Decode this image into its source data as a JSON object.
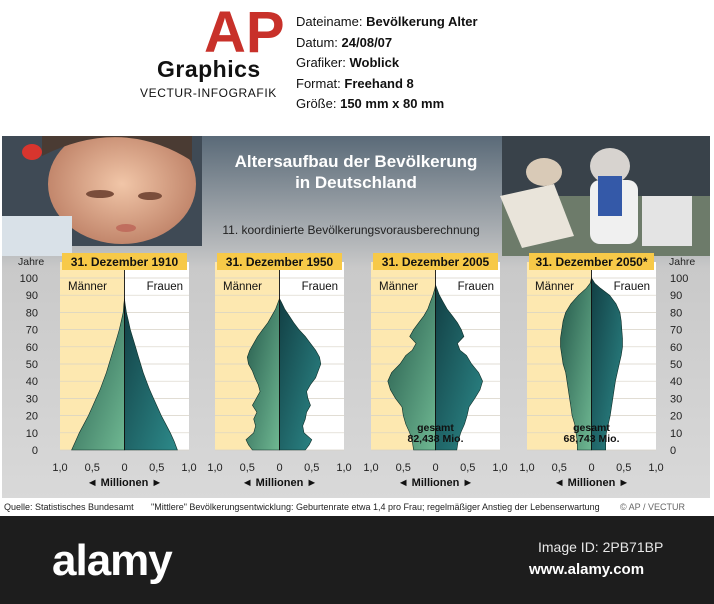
{
  "header": {
    "logo_letters": "AP",
    "graphics": "Graphics",
    "vectur": "VECTUR-INFOGRAFIK",
    "meta": [
      {
        "label": "Dateiname:",
        "value": "Bevölkerung Alter"
      },
      {
        "label": "Datum:",
        "value": "24/08/07"
      },
      {
        "label": "Grafiker:",
        "value": "Woblick"
      },
      {
        "label": "Format:",
        "value": "Freehand 8"
      },
      {
        "label": "Größe:",
        "value": "150 mm x 80 mm"
      }
    ]
  },
  "colors": {
    "male": "#6fb892",
    "male_dark": "#23574a",
    "female": "#2d8a8a",
    "female_dark": "#123f44",
    "highlight": "#fde8b0",
    "title_bar": "#f7c948"
  },
  "chart_data": {
    "type": "area",
    "title": "Altersaufbau der Bevölkerung in Deutschland",
    "subtitle": "11. koordinierte Bevölkerungsvorausberechnung",
    "ylabel": "Jahre",
    "xlabel": "Millionen",
    "ylim": [
      0,
      100
    ],
    "xlim": [
      -1.0,
      1.0
    ],
    "y_ticks": [
      "0",
      "10",
      "20",
      "30",
      "40",
      "50",
      "60",
      "70",
      "80",
      "90",
      "100"
    ],
    "x_ticks": [
      "1,0",
      "0,5",
      "0",
      "0,5",
      "1,0"
    ],
    "legend_left": "Männer",
    "legend_right": "Frauen",
    "source": "Quelle: Statistisches Bundesamt",
    "note": "\"Mittlere\" Bevölkerungsentwicklung: Geburtenrate etwa 1,4 pro Frau; regelmäßiger Anstieg der Lebenserwartung",
    "credit": "© AP / VECTUR",
    "series": [
      {
        "name": "31. Dezember 1910",
        "ages": [
          0,
          5,
          10,
          15,
          20,
          25,
          30,
          35,
          40,
          45,
          50,
          55,
          60,
          65,
          70,
          75,
          80,
          85,
          88
        ],
        "male": [
          0.82,
          0.76,
          0.7,
          0.63,
          0.56,
          0.5,
          0.44,
          0.38,
          0.33,
          0.28,
          0.24,
          0.2,
          0.16,
          0.12,
          0.08,
          0.05,
          0.02,
          0.01,
          0
        ],
        "female": [
          0.82,
          0.77,
          0.71,
          0.64,
          0.57,
          0.51,
          0.45,
          0.39,
          0.34,
          0.29,
          0.25,
          0.21,
          0.17,
          0.13,
          0.09,
          0.06,
          0.03,
          0.01,
          0
        ],
        "total": ""
      },
      {
        "name": "31. Dezember 1950",
        "ages": [
          0,
          3,
          6,
          10,
          14,
          18,
          22,
          26,
          30,
          34,
          38,
          42,
          46,
          50,
          54,
          58,
          62,
          66,
          70,
          74,
          78,
          82,
          86,
          88
        ],
        "male": [
          0.42,
          0.48,
          0.52,
          0.4,
          0.37,
          0.4,
          0.35,
          0.42,
          0.36,
          0.3,
          0.33,
          0.38,
          0.42,
          0.48,
          0.5,
          0.46,
          0.4,
          0.34,
          0.26,
          0.18,
          0.12,
          0.06,
          0.02,
          0
        ],
        "female": [
          0.4,
          0.46,
          0.5,
          0.38,
          0.36,
          0.4,
          0.42,
          0.48,
          0.44,
          0.42,
          0.48,
          0.56,
          0.6,
          0.64,
          0.62,
          0.56,
          0.48,
          0.4,
          0.3,
          0.22,
          0.15,
          0.08,
          0.03,
          0
        ]
      },
      {
        "name": "31. Dezember 2005",
        "ages": [
          0,
          5,
          10,
          15,
          20,
          25,
          30,
          35,
          40,
          45,
          50,
          55,
          58,
          62,
          66,
          70,
          74,
          78,
          82,
          86,
          90,
          94,
          96
        ],
        "male": [
          0.34,
          0.36,
          0.4,
          0.46,
          0.5,
          0.52,
          0.62,
          0.7,
          0.74,
          0.68,
          0.55,
          0.46,
          0.36,
          0.3,
          0.4,
          0.34,
          0.26,
          0.18,
          0.12,
          0.08,
          0.04,
          0.01,
          0
        ],
        "female": [
          0.33,
          0.35,
          0.39,
          0.45,
          0.49,
          0.52,
          0.61,
          0.69,
          0.73,
          0.67,
          0.56,
          0.48,
          0.38,
          0.34,
          0.44,
          0.4,
          0.34,
          0.26,
          0.18,
          0.12,
          0.06,
          0.02,
          0
        ],
        "total_label": "gesamt",
        "total": "82,438 Mio."
      },
      {
        "name": "31. Dezember 2050*",
        "ages": [
          0,
          5,
          10,
          15,
          20,
          25,
          30,
          35,
          40,
          45,
          50,
          55,
          60,
          65,
          70,
          75,
          80,
          85,
          90,
          94,
          97,
          100
        ],
        "male": [
          0.22,
          0.22,
          0.24,
          0.26,
          0.3,
          0.32,
          0.34,
          0.36,
          0.38,
          0.4,
          0.44,
          0.46,
          0.48,
          0.48,
          0.46,
          0.44,
          0.4,
          0.32,
          0.2,
          0.08,
          0.02,
          0
        ],
        "female": [
          0.22,
          0.22,
          0.23,
          0.26,
          0.29,
          0.31,
          0.33,
          0.35,
          0.37,
          0.4,
          0.43,
          0.46,
          0.48,
          0.48,
          0.47,
          0.46,
          0.44,
          0.38,
          0.28,
          0.14,
          0.05,
          0
        ],
        "total_label": "gesamt",
        "total": "68,743 Mio."
      }
    ]
  },
  "footer": {
    "alamy": "alamy",
    "image_id": "Image ID: 2PB71BP",
    "url": "www.alamy.com"
  }
}
